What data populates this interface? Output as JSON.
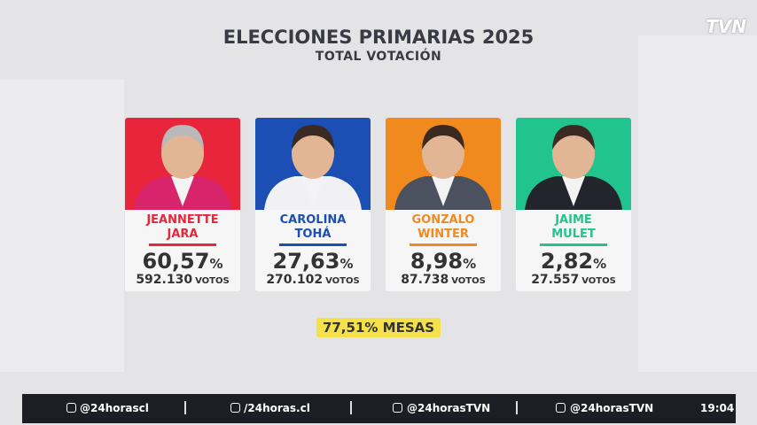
{
  "header": {
    "title": "ELECCIONES PRIMARIAS 2025",
    "subtitle": "TOTAL VOTACIÓN"
  },
  "logo": "TVN",
  "candidates": [
    {
      "first_name": "JEANNETTE",
      "last_name": "JARA",
      "percent": "60,57",
      "percent_sign": "%",
      "votes": "592.130",
      "votes_label": "VOTOS"
    },
    {
      "first_name": "CAROLINA",
      "last_name": "TOHÁ",
      "percent": "27,63",
      "percent_sign": "%",
      "votes": "270.102",
      "votes_label": "VOTOS"
    },
    {
      "first_name": "GONZALO",
      "last_name": "WINTER",
      "percent": "8,98",
      "percent_sign": "%",
      "votes": "87.738",
      "votes_label": "VOTOS"
    },
    {
      "first_name": "JAIME",
      "last_name": "MULET",
      "percent": "2,82",
      "percent_sign": "%",
      "votes": "27.557",
      "votes_label": "VOTOS"
    }
  ],
  "mesas": {
    "value": "77,51%",
    "label": "MESAS"
  },
  "footer": {
    "socials": [
      "@24horascl",
      "/24horas.cl",
      "@24horasTVN",
      "@24horasTVN"
    ],
    "time": "19:04"
  }
}
